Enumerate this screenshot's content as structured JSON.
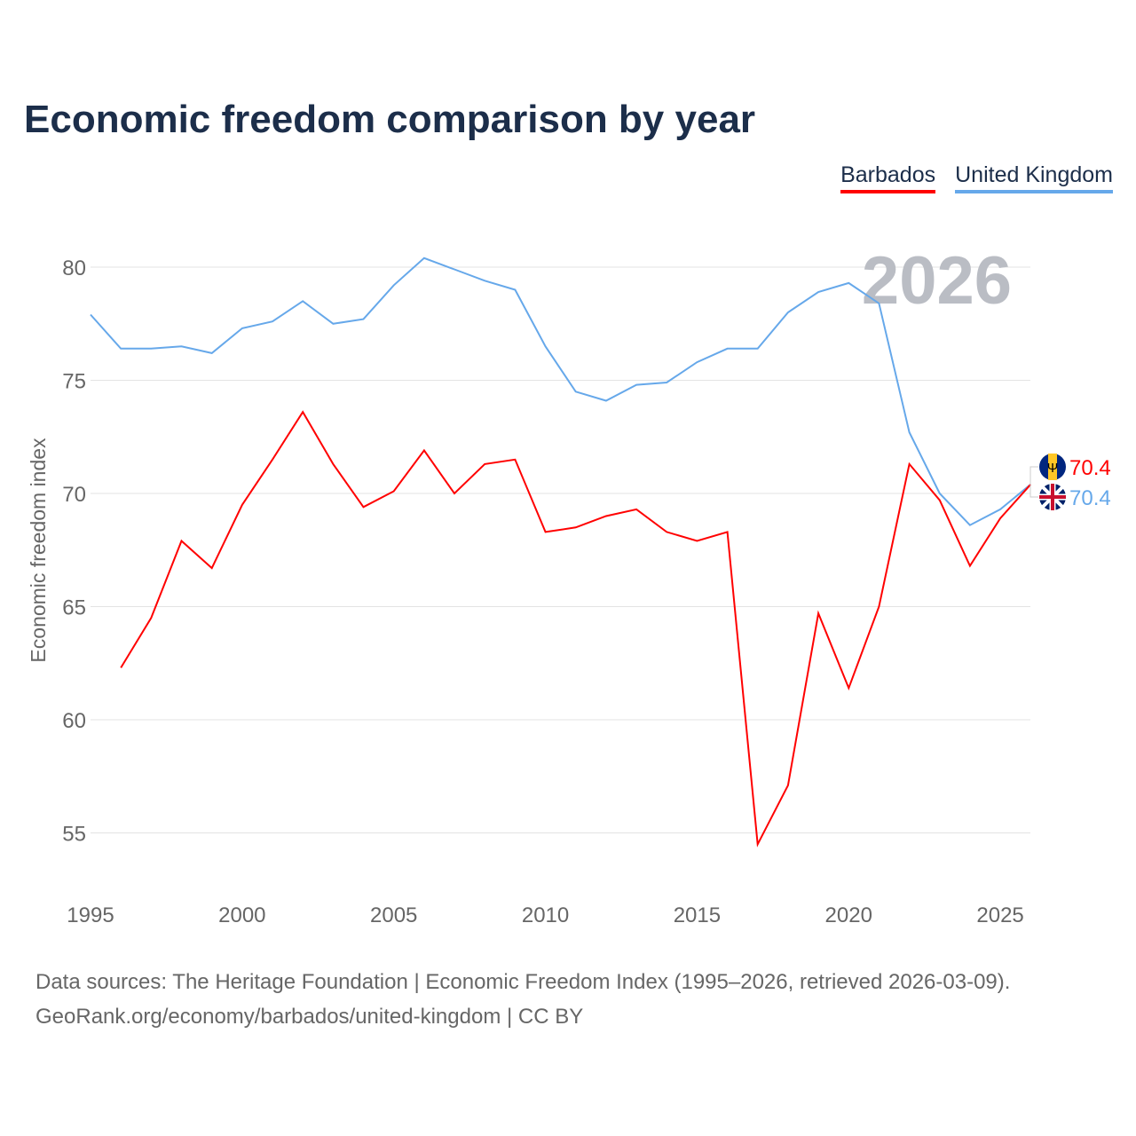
{
  "title": "Economic freedom comparison by year",
  "footer": {
    "line1": "Data sources: The Heritage Foundation | Economic Freedom Index (1995–2026, retrieved 2026-03-09).",
    "line2": "GeoRank.org/economy/barbados/united-kingdom | CC BY"
  },
  "chart_data": {
    "type": "line",
    "title": "Economic freedom comparison by year",
    "xlabel": "",
    "ylabel": "Economic freedom index",
    "xlim": [
      1995,
      2026
    ],
    "ylim": [
      52.5,
      82
    ],
    "xticks": [
      "1995",
      "2000",
      "2005",
      "2010",
      "2015",
      "2020",
      "2025"
    ],
    "yticks": [
      "55",
      "60",
      "65",
      "70",
      "75",
      "80"
    ],
    "year_watermark": "2026",
    "legend_position": "top-right",
    "series": [
      {
        "name": "Barbados",
        "color": "#ff0000",
        "end_label": "70.4",
        "x": [
          1996,
          1997,
          1998,
          1999,
          2000,
          2001,
          2002,
          2003,
          2004,
          2005,
          2006,
          2007,
          2008,
          2009,
          2010,
          2011,
          2012,
          2013,
          2014,
          2015,
          2016,
          2017,
          2018,
          2019,
          2020,
          2021,
          2022,
          2023,
          2024,
          2025,
          2026
        ],
        "values": [
          62.3,
          64.5,
          67.9,
          66.7,
          69.5,
          71.5,
          73.6,
          71.3,
          69.4,
          70.1,
          71.9,
          70.0,
          71.3,
          71.5,
          68.3,
          68.5,
          69.0,
          69.3,
          68.3,
          67.9,
          68.3,
          54.5,
          57.1,
          64.7,
          61.4,
          65.0,
          71.3,
          69.7,
          66.8,
          68.9,
          70.4
        ]
      },
      {
        "name": "United Kingdom",
        "color": "#66a8ea",
        "end_label": "70.4",
        "x": [
          1995,
          1996,
          1997,
          1998,
          1999,
          2000,
          2001,
          2002,
          2003,
          2004,
          2005,
          2006,
          2007,
          2008,
          2009,
          2010,
          2011,
          2012,
          2013,
          2014,
          2015,
          2016,
          2017,
          2018,
          2019,
          2020,
          2021,
          2022,
          2023,
          2024,
          2025,
          2026
        ],
        "values": [
          77.9,
          76.4,
          76.4,
          76.5,
          76.2,
          77.3,
          77.6,
          78.5,
          77.5,
          77.7,
          79.2,
          80.4,
          79.9,
          79.4,
          79.0,
          76.5,
          74.5,
          74.1,
          74.8,
          74.9,
          75.8,
          76.4,
          76.4,
          78.0,
          78.9,
          79.3,
          78.4,
          72.7,
          70.0,
          68.6,
          69.3,
          70.4
        ]
      }
    ]
  }
}
